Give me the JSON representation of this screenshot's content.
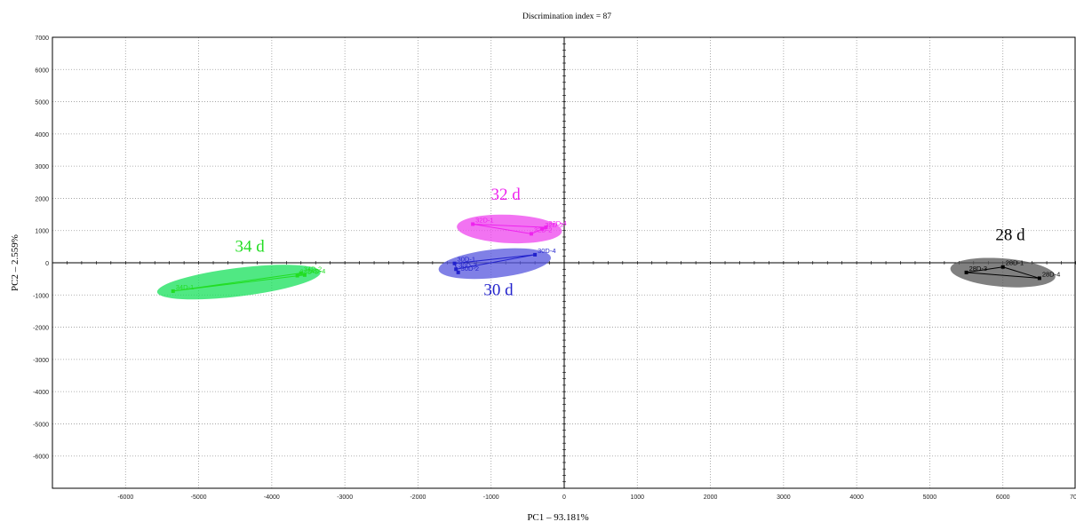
{
  "chart_data": {
    "type": "scatter",
    "title": "Discrimination index = 87",
    "xlabel": "PC1 – 93.181%",
    "ylabel": "PC2 – 2.559%",
    "xlim": [
      -7000,
      7000
    ],
    "ylim": [
      -7000,
      7000
    ],
    "grid": true,
    "x_ticks": [
      "-6000",
      "-5000",
      "-4000",
      "-3000",
      "-2000",
      "-1000",
      "0",
      "1000",
      "2000",
      "3000",
      "4000",
      "5000",
      "6000",
      "70"
    ],
    "y_ticks": [
      {
        "v": 7000,
        "label": "7000"
      },
      {
        "v": 6000,
        "label": "6000"
      },
      {
        "v": 5000,
        "label": "5000"
      },
      {
        "v": 4000,
        "label": "4000"
      },
      {
        "v": 3000,
        "label": "3000"
      },
      {
        "v": 2000,
        "label": "2000"
      },
      {
        "v": 1000,
        "label": "1000"
      },
      {
        "v": 0,
        "label": "0"
      },
      {
        "v": -1000,
        "label": "-1000"
      },
      {
        "v": -2000,
        "label": "-2000"
      },
      {
        "v": -3000,
        "label": "-3000"
      },
      {
        "v": -4000,
        "label": "-4000"
      },
      {
        "v": -5000,
        "label": "-5000"
      },
      {
        "v": -6000,
        "label": "-6000"
      }
    ],
    "series": [
      {
        "name": "34 d",
        "color": "#22dd22",
        "ellipse_fill": "#16e05a",
        "points": [
          {
            "label": "34D-1",
            "x": -5350,
            "y": -880
          },
          {
            "label": "34D-2",
            "x": -3600,
            "y": -320
          },
          {
            "label": "34D-3",
            "x": -3650,
            "y": -400
          },
          {
            "label": "34D-4",
            "x": -3550,
            "y": -380
          }
        ]
      },
      {
        "name": "32 d",
        "color": "#ee22ee",
        "ellipse_fill": "#ee44ee",
        "points": [
          {
            "label": "32D-1",
            "x": -1250,
            "y": 1200
          },
          {
            "label": "32D-2",
            "x": -450,
            "y": 900
          },
          {
            "label": "32D-3",
            "x": -300,
            "y": 1050
          },
          {
            "label": "32D-4",
            "x": -250,
            "y": 1100
          }
        ]
      },
      {
        "name": "30 d",
        "color": "#2222cc",
        "ellipse_fill": "#5555dd",
        "points": [
          {
            "label": "30D-1",
            "x": -1500,
            "y": -20
          },
          {
            "label": "30D-2",
            "x": -1450,
            "y": -300
          },
          {
            "label": "30D-3",
            "x": -1480,
            "y": -200
          },
          {
            "label": "30D-4",
            "x": -400,
            "y": 250
          }
        ]
      },
      {
        "name": "28 d",
        "color": "#000000",
        "ellipse_fill": "#555555",
        "points": [
          {
            "label": "28D-1",
            "x": 6000,
            "y": -130
          },
          {
            "label": "28D-3",
            "x": 5500,
            "y": -300
          },
          {
            "label": "28D-4",
            "x": 6500,
            "y": -480
          }
        ]
      }
    ],
    "group_labels": [
      {
        "text": "34 d",
        "x": -4300,
        "y": 350,
        "color": "#22dd22"
      },
      {
        "text": "32 d",
        "x": -800,
        "y": 1950,
        "color": "#ee22ee"
      },
      {
        "text": "30 d",
        "x": -900,
        "y": -1000,
        "color": "#2222cc"
      },
      {
        "text": "28 d",
        "x": 6100,
        "y": 700,
        "color": "#000000"
      }
    ]
  }
}
